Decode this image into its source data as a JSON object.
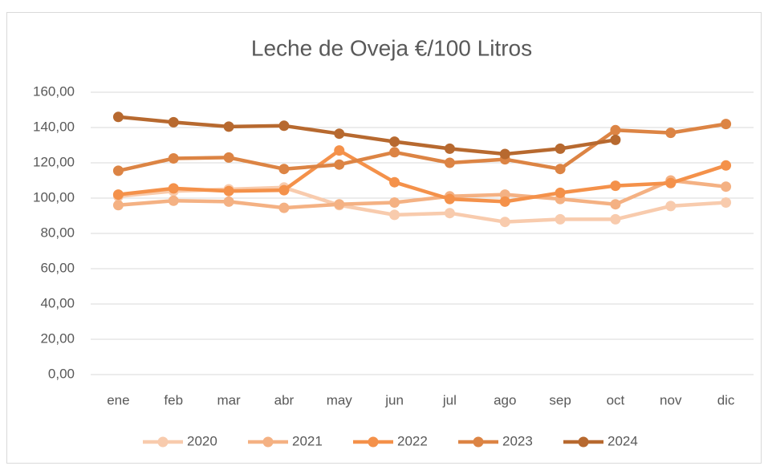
{
  "chart_data": {
    "type": "line",
    "title": "Leche de Oveja €/100 Litros",
    "categories": [
      "ene",
      "feb",
      "mar",
      "abr",
      "may",
      "jun",
      "jul",
      "ago",
      "sep",
      "oct",
      "nov",
      "dic"
    ],
    "series": [
      {
        "name": "2020",
        "color": "#f8cbad",
        "values": [
          101,
          104,
          105,
          106,
          96,
          90.5,
          91.5,
          86.5,
          88,
          88,
          95.5,
          97.5
        ]
      },
      {
        "name": "2021",
        "color": "#f4b183",
        "values": [
          96,
          98.5,
          98,
          94.5,
          96.5,
          97.5,
          101,
          102,
          99.5,
          96.5,
          110,
          106.5
        ]
      },
      {
        "name": "2022",
        "color": "#f4914a",
        "values": [
          102,
          105.5,
          104,
          104.5,
          127,
          109,
          99.5,
          98,
          103,
          107,
          108.5,
          118.5
        ]
      },
      {
        "name": "2023",
        "color": "#dc8444",
        "values": [
          115.5,
          122.5,
          123,
          116.5,
          119,
          126,
          120,
          122,
          116.5,
          138.5,
          137,
          142
        ]
      },
      {
        "name": "2024",
        "color": "#b7692f",
        "values": [
          146,
          143,
          140.5,
          141,
          136.5,
          132,
          128,
          125,
          128,
          133,
          null,
          null
        ]
      }
    ],
    "ylim": [
      0,
      160
    ],
    "yticks": [
      {
        "value": 0,
        "label": "0,00"
      },
      {
        "value": 20,
        "label": "20,00"
      },
      {
        "value": 40,
        "label": "40,00"
      },
      {
        "value": 60,
        "label": "60,00"
      },
      {
        "value": 80,
        "label": "80,00"
      },
      {
        "value": 100,
        "label": "100,00"
      },
      {
        "value": 120,
        "label": "120,00"
      },
      {
        "value": 140,
        "label": "140,00"
      },
      {
        "value": 160,
        "label": "160,00"
      }
    ],
    "grid": true,
    "legend": "bottom"
  }
}
